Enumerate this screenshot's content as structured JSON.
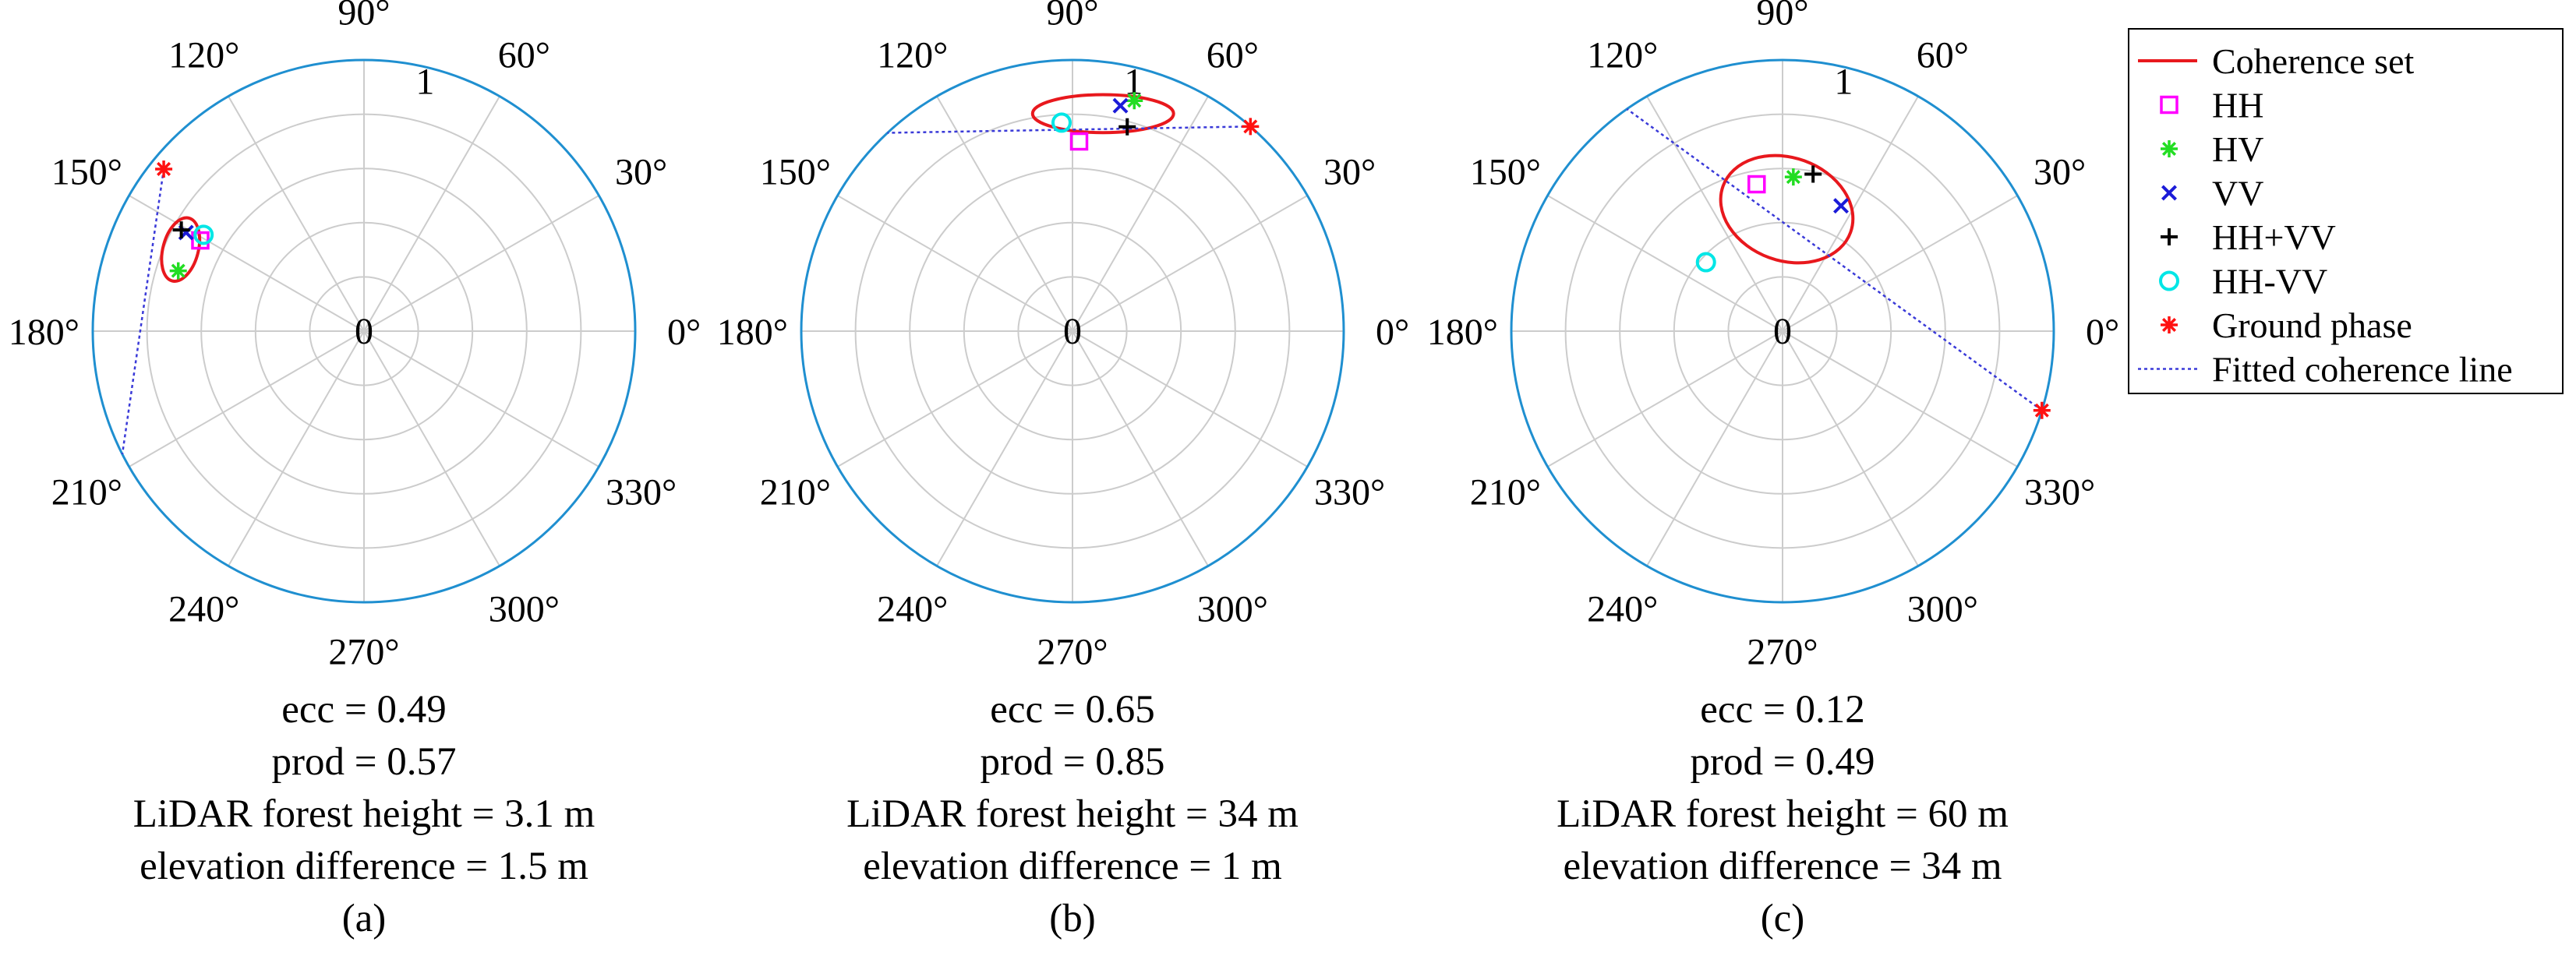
{
  "chart_data": [
    {
      "type": "polar",
      "panel_label": "(a)",
      "radius_max": 1,
      "radius_label": "1",
      "radius_label_angle_deg": 80,
      "angle_ticks_deg": [
        0,
        30,
        60,
        90,
        120,
        150,
        180,
        210,
        240,
        270,
        300,
        330
      ],
      "angle_labels": [
        "0°",
        "30°",
        "60°",
        "90°",
        "120°",
        "150°",
        "180°",
        "210°",
        "240°",
        "270°",
        "300°",
        "330°"
      ],
      "center_label": "0",
      "points": {
        "HH": {
          "r": 0.69,
          "theta": 151
        },
        "HV": {
          "r": 0.72,
          "theta": 162
        },
        "VV": {
          "r": 0.75,
          "theta": 151
        },
        "HH+VV": {
          "r": 0.77,
          "theta": 151
        },
        "HH-VV": {
          "r": 0.69,
          "theta": 149
        },
        "Ground phase": {
          "r": 0.95,
          "theta": 141
        }
      },
      "coherence_ellipse": {
        "center": {
          "r": 0.74,
          "theta": 156
        },
        "semi_axes": [
          0.12,
          0.065
        ],
        "rotation_deg": 75
      },
      "fitted_line": [
        {
          "r": 0.95,
          "theta": 141
        },
        {
          "r": 1.0,
          "theta": 207
        }
      ],
      "stats": {
        "ecc": "ecc = 0.49",
        "prod": "prod = 0.57",
        "lidar": "LiDAR forest height = 3.1 m",
        "elev": "elevation difference = 1.5 m"
      }
    },
    {
      "type": "polar",
      "panel_label": "(b)",
      "radius_max": 1,
      "radius_label": "1",
      "radius_label_angle_deg": 80,
      "angle_ticks_deg": [
        0,
        30,
        60,
        90,
        120,
        150,
        180,
        210,
        240,
        270,
        300,
        330
      ],
      "angle_labels": [
        "0°",
        "30°",
        "60°",
        "90°",
        "120°",
        "150°",
        "180°",
        "210°",
        "240°",
        "270°",
        "300°",
        "330°"
      ],
      "center_label": "0",
      "points": {
        "HH": {
          "r": 0.7,
          "theta": 88
        },
        "HV": {
          "r": 0.88,
          "theta": 75
        },
        "VV": {
          "r": 0.85,
          "theta": 78
        },
        "HH+VV": {
          "r": 0.78,
          "theta": 75
        },
        "HH-VV": {
          "r": 0.77,
          "theta": 93
        },
        "Ground phase": {
          "r": 1.0,
          "theta": 49
        }
      },
      "coherence_ellipse": {
        "center": {
          "r": 0.81,
          "theta": 82
        },
        "semi_axes": [
          0.26,
          0.07
        ],
        "rotation_deg": 0
      },
      "fitted_line": [
        {
          "r": 1.0,
          "theta": 49
        },
        {
          "r": 1.0,
          "theta": 133
        }
      ],
      "stats": {
        "ecc": "ecc = 0.65",
        "prod": "prod = 0.85",
        "lidar": "LiDAR forest height = 34 m",
        "elev": "elevation difference = 1 m"
      }
    },
    {
      "type": "polar",
      "panel_label": "(c)",
      "radius_max": 1,
      "radius_label": "1",
      "radius_label_angle_deg": 80,
      "angle_ticks_deg": [
        0,
        30,
        60,
        90,
        120,
        150,
        180,
        210,
        240,
        270,
        300,
        330
      ],
      "angle_labels": [
        "0°",
        "30°",
        "60°",
        "90°",
        "120°",
        "150°",
        "180°",
        "210°",
        "240°",
        "270°",
        "300°",
        "330°"
      ],
      "center_label": "0",
      "points": {
        "HH": {
          "r": 0.55,
          "theta": 100
        },
        "HV": {
          "r": 0.57,
          "theta": 86
        },
        "VV": {
          "r": 0.51,
          "theta": 65
        },
        "HH+VV": {
          "r": 0.59,
          "theta": 79
        },
        "HH-VV": {
          "r": 0.38,
          "theta": 138
        },
        "Ground phase": {
          "r": 1.0,
          "theta": 343
        }
      },
      "coherence_ellipse": {
        "center": {
          "r": 0.45,
          "theta": 88
        },
        "semi_axes": [
          0.25,
          0.19
        ],
        "rotation_deg": -20
      },
      "fitted_line": [
        {
          "r": 1.0,
          "theta": 343
        },
        {
          "r": 1.0,
          "theta": 125
        }
      ],
      "stats": {
        "ecc": "ecc = 0.12",
        "prod": "prod = 0.49",
        "lidar": "LiDAR forest height = 60 m",
        "elev": "elevation difference = 34 m"
      }
    }
  ],
  "legend": {
    "items": [
      {
        "key": "coherence-set",
        "label": "Coherence set",
        "marker": "line",
        "color": "#e8181d"
      },
      {
        "key": "HH",
        "label": "HH",
        "marker": "square",
        "color": "#ff00ff"
      },
      {
        "key": "HV",
        "label": "HV",
        "marker": "asterisk",
        "color": "#22dd22"
      },
      {
        "key": "VV",
        "label": "VV",
        "marker": "x",
        "color": "#1b1bd8"
      },
      {
        "key": "HH+VV",
        "label": "HH+VV",
        "marker": "plus",
        "color": "#000000"
      },
      {
        "key": "HH-VV",
        "label": "HH-VV",
        "marker": "circle",
        "color": "#00e6e6"
      },
      {
        "key": "Ground phase",
        "label": "Ground phase",
        "marker": "asterisk",
        "color": "#ff1111"
      },
      {
        "key": "fitted-line",
        "label": "Fitted coherence line",
        "marker": "dotted-line",
        "color": "#3a3ad8"
      }
    ]
  },
  "colors": {
    "outer_ring": "#1f8fd0",
    "grid": "#cccccc",
    "ellipse": "#e8181d",
    "fitted_line": "#3a3ad8"
  }
}
